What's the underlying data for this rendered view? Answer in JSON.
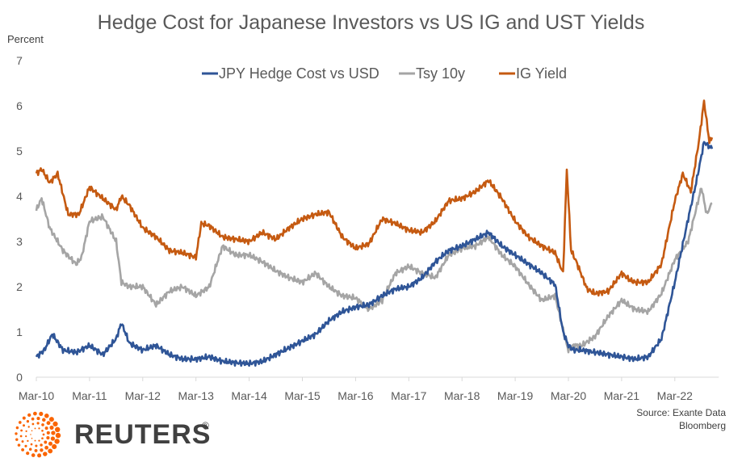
{
  "chart_data": {
    "type": "line",
    "title": "Hedge Cost for Japanese Investors vs US IG and UST Yields",
    "ylabel": "Percent",
    "xlabel": "",
    "ylim": [
      0,
      7
    ],
    "yticks": [
      0,
      1,
      2,
      3,
      4,
      5,
      6,
      7
    ],
    "xticks": [
      "Mar-10",
      "Mar-11",
      "Mar-12",
      "Mar-13",
      "Mar-14",
      "Mar-15",
      "Mar-16",
      "Mar-17",
      "Mar-18",
      "Mar-19",
      "Mar-20",
      "Mar-21",
      "Mar-22"
    ],
    "x_unit": "years since Mar-2010",
    "xlim": [
      0,
      12.75
    ],
    "grid": false,
    "legend_position": "top-center",
    "series": [
      {
        "name": "JPY Hedge Cost vs USD",
        "color": "#2F5597",
        "x": [
          0,
          0.15,
          0.3,
          0.5,
          0.75,
          1.0,
          1.25,
          1.5,
          1.6,
          1.75,
          2.0,
          2.25,
          2.5,
          2.75,
          3.0,
          3.25,
          3.5,
          3.75,
          4.0,
          4.25,
          4.5,
          4.75,
          5.0,
          5.25,
          5.5,
          5.75,
          6.0,
          6.25,
          6.5,
          6.75,
          7.0,
          7.25,
          7.5,
          7.75,
          8.0,
          8.25,
          8.5,
          8.75,
          9.0,
          9.25,
          9.5,
          9.75,
          9.9,
          10.0,
          10.1,
          10.25,
          10.5,
          10.75,
          11.0,
          11.25,
          11.5,
          11.75,
          12.0,
          12.25,
          12.4,
          12.55,
          12.7
        ],
        "y": [
          0.45,
          0.6,
          0.95,
          0.6,
          0.55,
          0.7,
          0.5,
          0.85,
          1.2,
          0.75,
          0.6,
          0.7,
          0.5,
          0.4,
          0.4,
          0.45,
          0.35,
          0.32,
          0.3,
          0.35,
          0.5,
          0.65,
          0.8,
          0.95,
          1.25,
          1.45,
          1.55,
          1.6,
          1.8,
          1.95,
          2.0,
          2.2,
          2.55,
          2.8,
          2.9,
          3.05,
          3.2,
          2.9,
          2.7,
          2.5,
          2.3,
          2.05,
          1.0,
          0.7,
          0.6,
          0.6,
          0.55,
          0.5,
          0.45,
          0.4,
          0.45,
          0.85,
          2.1,
          3.5,
          4.3,
          5.2,
          5.05
        ]
      },
      {
        "name": "Tsy 10y",
        "color": "#A5A5A5",
        "x": [
          0,
          0.1,
          0.25,
          0.5,
          0.75,
          0.85,
          1.0,
          1.25,
          1.5,
          1.6,
          1.75,
          2.0,
          2.25,
          2.5,
          2.75,
          3.0,
          3.25,
          3.5,
          3.75,
          4.0,
          4.25,
          4.5,
          4.75,
          5.0,
          5.25,
          5.5,
          5.75,
          6.0,
          6.25,
          6.5,
          6.75,
          7.0,
          7.25,
          7.5,
          7.75,
          8.0,
          8.25,
          8.5,
          8.75,
          9.0,
          9.25,
          9.5,
          9.75,
          9.95,
          10.0,
          10.1,
          10.25,
          10.5,
          10.75,
          11.0,
          11.25,
          11.5,
          11.75,
          12.0,
          12.25,
          12.5,
          12.6,
          12.7
        ],
        "y": [
          3.7,
          3.95,
          3.3,
          2.8,
          2.5,
          2.65,
          3.45,
          3.55,
          3.0,
          2.1,
          2.0,
          2.0,
          1.6,
          1.9,
          2.0,
          1.8,
          2.0,
          2.9,
          2.7,
          2.7,
          2.55,
          2.35,
          2.2,
          2.1,
          2.3,
          2.0,
          1.8,
          1.75,
          1.5,
          1.7,
          2.3,
          2.45,
          2.3,
          2.2,
          2.7,
          2.85,
          2.9,
          3.1,
          2.7,
          2.45,
          2.05,
          1.7,
          1.8,
          0.8,
          0.6,
          0.7,
          0.7,
          0.9,
          1.35,
          1.7,
          1.5,
          1.45,
          1.85,
          2.6,
          3.0,
          4.2,
          3.6,
          3.85
        ]
      },
      {
        "name": "IG Yield",
        "color": "#C55A11",
        "x": [
          0,
          0.1,
          0.25,
          0.4,
          0.6,
          0.8,
          1.0,
          1.25,
          1.5,
          1.6,
          1.75,
          2.0,
          2.25,
          2.5,
          2.75,
          3.0,
          3.1,
          3.25,
          3.5,
          3.75,
          4.0,
          4.25,
          4.5,
          4.75,
          5.0,
          5.25,
          5.5,
          5.75,
          6.0,
          6.25,
          6.5,
          6.75,
          7.0,
          7.25,
          7.5,
          7.75,
          8.0,
          8.25,
          8.5,
          8.75,
          9.0,
          9.25,
          9.5,
          9.75,
          9.9,
          9.97,
          10.05,
          10.15,
          10.35,
          10.5,
          10.75,
          11.0,
          11.15,
          11.25,
          11.5,
          11.75,
          12.0,
          12.15,
          12.3,
          12.45,
          12.55,
          12.65,
          12.7
        ],
        "y": [
          4.5,
          4.6,
          4.3,
          4.5,
          3.6,
          3.6,
          4.2,
          3.95,
          3.7,
          4.0,
          3.8,
          3.3,
          3.1,
          2.8,
          2.75,
          2.65,
          3.4,
          3.35,
          3.1,
          3.05,
          3.0,
          3.2,
          3.05,
          3.3,
          3.5,
          3.6,
          3.65,
          3.1,
          2.85,
          2.95,
          3.5,
          3.4,
          3.25,
          3.2,
          3.45,
          3.9,
          3.95,
          4.1,
          4.35,
          3.95,
          3.45,
          3.1,
          2.9,
          2.75,
          2.3,
          4.6,
          2.8,
          2.55,
          1.95,
          1.85,
          1.9,
          2.3,
          2.15,
          2.1,
          2.1,
          2.5,
          3.9,
          4.5,
          4.1,
          5.2,
          6.1,
          5.2,
          5.3
        ]
      }
    ],
    "source": [
      "Source: Exante Data",
      "Bloomberg"
    ]
  },
  "branding": {
    "publisher": "REUTERS",
    "registered_mark": "®",
    "logo_color": "#FA6400"
  }
}
